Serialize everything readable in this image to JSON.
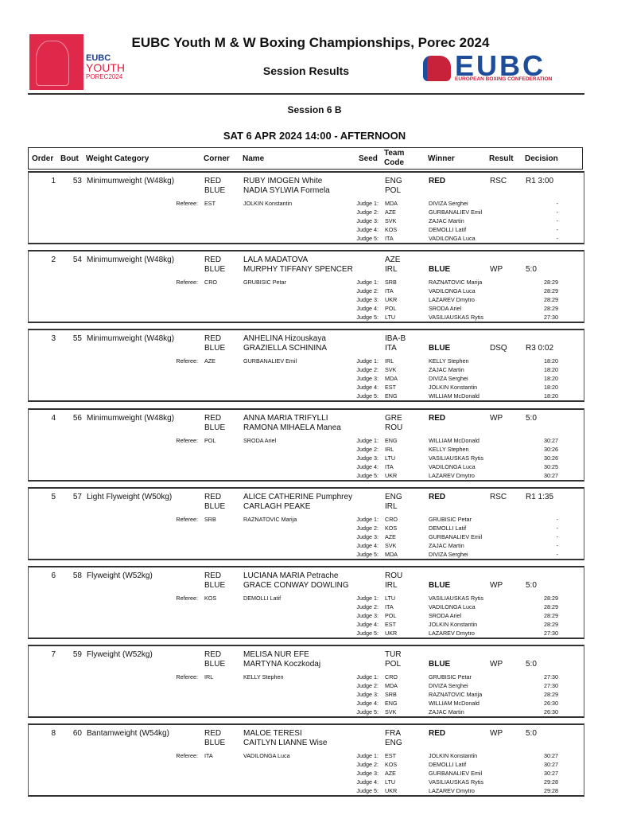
{
  "header": {
    "title": "EUBC Youth M & W Boxing Championships, Porec 2024",
    "subtitle": "Session Results",
    "left_logo": {
      "line1": "EUBC",
      "line2": "YOUTH",
      "line3": "POREC2024"
    },
    "right_logo": {
      "word": "EUBC",
      "tagline": "EUROPEAN BOXING CONFEDERATION"
    },
    "session": "Session 6 B",
    "datetime": "SAT 6 APR 2024  14:00 - AFTERNOON"
  },
  "columns": {
    "order": "Order",
    "bout": "Bout",
    "weight": "Weight Category",
    "corner": "Corner",
    "name": "Name",
    "seed": "Seed",
    "team_code": "Team Code",
    "winner": "Winner",
    "result": "Result",
    "decision": "Decision"
  },
  "labels": {
    "red": "RED",
    "blue": "BLUE",
    "referee": "Referee:",
    "judge_prefix": "Judge"
  },
  "bouts": [
    {
      "order": "1",
      "bout": "53",
      "weight": "Minimumweight (W48kg)",
      "red_name": "RUBY IMOGEN White",
      "red_team": "ENG",
      "blue_name": "NADIA SYLWIA Formela",
      "blue_team": "POL",
      "winner": "RED",
      "result": "RSC",
      "decision": "R1 3:00",
      "referee": {
        "country": "EST",
        "name": "JOLKIN Konstantin"
      },
      "judges": [
        {
          "label": "Judge 1:",
          "country": "MDA",
          "name": "DIVIZA Serghei",
          "score": "-"
        },
        {
          "label": "Judge 2:",
          "country": "AZE",
          "name": "GURBANALIEV Emil",
          "score": "-"
        },
        {
          "label": "Judge 3:",
          "country": "SVK",
          "name": "ZAJAC Martin",
          "score": "-"
        },
        {
          "label": "Judge 4:",
          "country": "KOS",
          "name": "DEMOLLI Latif",
          "score": "-"
        },
        {
          "label": "Judge 5:",
          "country": "ITA",
          "name": "VADILONGA Luca",
          "score": "-"
        }
      ]
    },
    {
      "order": "2",
      "bout": "54",
      "weight": "Minimumweight (W48kg)",
      "red_name": "LALA MADATOVA",
      "red_team": "AZE",
      "blue_name": "MURPHY TIFFANY SPENCER",
      "blue_team": "IRL",
      "winner": "BLUE",
      "result": "WP",
      "decision": "5:0",
      "referee": {
        "country": "CRO",
        "name": "GRUBISIC Petar"
      },
      "judges": [
        {
          "label": "Judge 1:",
          "country": "SRB",
          "name": "RAZNATOVIC Marija",
          "score": "28:29"
        },
        {
          "label": "Judge 2:",
          "country": "ITA",
          "name": "VADILONGA Luca",
          "score": "28:29"
        },
        {
          "label": "Judge 3:",
          "country": "UKR",
          "name": "LAZAREV Dmytro",
          "score": "28:29"
        },
        {
          "label": "Judge 4:",
          "country": "POL",
          "name": "SRODA Ariel",
          "score": "28:29"
        },
        {
          "label": "Judge 5:",
          "country": "LTU",
          "name": "VASILIAUSKAS Rytis",
          "score": "27:30"
        }
      ]
    },
    {
      "order": "3",
      "bout": "55",
      "weight": "Minimumweight (W48kg)",
      "red_name": "ANHELINA Hizouskaya",
      "red_team": "IBA-B",
      "blue_name": "GRAZIELLA SCHININA",
      "blue_team": "ITA",
      "winner": "BLUE",
      "result": "DSQ",
      "decision": "R3 0:02",
      "referee": {
        "country": "AZE",
        "name": "GURBANALIEV Emil"
      },
      "judges": [
        {
          "label": "Judge 1:",
          "country": "IRL",
          "name": "KELLY Stephen",
          "score": "18:20"
        },
        {
          "label": "Judge 2:",
          "country": "SVK",
          "name": "ZAJAC Martin",
          "score": "18:20"
        },
        {
          "label": "Judge 3:",
          "country": "MDA",
          "name": "DIVIZA Serghei",
          "score": "18:20"
        },
        {
          "label": "Judge 4:",
          "country": "EST",
          "name": "JOLKIN Konstantin",
          "score": "18:20"
        },
        {
          "label": "Judge 5:",
          "country": "ENG",
          "name": "WILLIAM McDonald",
          "score": "18:20"
        }
      ]
    },
    {
      "order": "4",
      "bout": "56",
      "weight": "Minimumweight (W48kg)",
      "red_name": "ANNA MARIA TRIFYLLI",
      "red_team": "GRE",
      "blue_name": "RAMONA MIHAELA Manea",
      "blue_team": "ROU",
      "winner": "RED",
      "result": "WP",
      "decision": "5:0",
      "referee": {
        "country": "POL",
        "name": "SRODA Ariel"
      },
      "judges": [
        {
          "label": "Judge 1:",
          "country": "ENG",
          "name": "WILLIAM McDonald",
          "score": "30:27"
        },
        {
          "label": "Judge 2:",
          "country": "IRL",
          "name": "KELLY Stephen",
          "score": "30:26"
        },
        {
          "label": "Judge 3:",
          "country": "LTU",
          "name": "VASILIAUSKAS Rytis",
          "score": "30:26"
        },
        {
          "label": "Judge 4:",
          "country": "ITA",
          "name": "VADILONGA Luca",
          "score": "30:25"
        },
        {
          "label": "Judge 5:",
          "country": "UKR",
          "name": "LAZAREV Dmytro",
          "score": "30:27"
        }
      ]
    },
    {
      "order": "5",
      "bout": "57",
      "weight": "Light Flyweight (W50kg)",
      "red_name": "ALICE CATHERINE Pumphrey",
      "red_team": "ENG",
      "blue_name": "CARLAGH PEAKE",
      "blue_team": "IRL",
      "winner": "RED",
      "result": "RSC",
      "decision": "R1 1:35",
      "referee": {
        "country": "SRB",
        "name": "RAZNATOVIC Marija"
      },
      "judges": [
        {
          "label": "Judge 1:",
          "country": "CRO",
          "name": "GRUBISIC Petar",
          "score": "-"
        },
        {
          "label": "Judge 2:",
          "country": "KOS",
          "name": "DEMOLLI Latif",
          "score": "-"
        },
        {
          "label": "Judge 3:",
          "country": "AZE",
          "name": "GURBANALIEV Emil",
          "score": "-"
        },
        {
          "label": "Judge 4:",
          "country": "SVK",
          "name": "ZAJAC Martin",
          "score": "-"
        },
        {
          "label": "Judge 5:",
          "country": "MDA",
          "name": "DIVIZA Serghei",
          "score": "-"
        }
      ]
    },
    {
      "order": "6",
      "bout": "58",
      "weight": "Flyweight (W52kg)",
      "red_name": "LUCIANA MARIA Petrache",
      "red_team": "ROU",
      "blue_name": "GRACE CONWAY  DOWLING",
      "blue_team": "IRL",
      "winner": "BLUE",
      "result": "WP",
      "decision": "5:0",
      "referee": {
        "country": "KOS",
        "name": "DEMOLLI Latif"
      },
      "judges": [
        {
          "label": "Judge 1:",
          "country": "LTU",
          "name": "VASILIAUSKAS Rytis",
          "score": "28:29"
        },
        {
          "label": "Judge 2:",
          "country": "ITA",
          "name": "VADILONGA Luca",
          "score": "28:29"
        },
        {
          "label": "Judge 3:",
          "country": "POL",
          "name": "SRODA Ariel",
          "score": "28:29"
        },
        {
          "label": "Judge 4:",
          "country": "EST",
          "name": "JOLKIN Konstantin",
          "score": "28:29"
        },
        {
          "label": "Judge 5:",
          "country": "UKR",
          "name": "LAZAREV Dmytro",
          "score": "27:30"
        }
      ]
    },
    {
      "order": "7",
      "bout": "59",
      "weight": "Flyweight (W52kg)",
      "red_name": "MELISA NUR EFE",
      "red_team": "TUR",
      "blue_name": "MARTYNA Koczkodaj",
      "blue_team": "POL",
      "winner": "BLUE",
      "result": "WP",
      "decision": "5:0",
      "referee": {
        "country": "IRL",
        "name": "KELLY Stephen"
      },
      "judges": [
        {
          "label": "Judge 1:",
          "country": "CRO",
          "name": "GRUBISIC Petar",
          "score": "27:30"
        },
        {
          "label": "Judge 2:",
          "country": "MDA",
          "name": "DIVIZA Serghei",
          "score": "27:30"
        },
        {
          "label": "Judge 3:",
          "country": "SRB",
          "name": "RAZNATOVIC Marija",
          "score": "28:29"
        },
        {
          "label": "Judge 4:",
          "country": "ENG",
          "name": "WILLIAM McDonald",
          "score": "26:30"
        },
        {
          "label": "Judge 5:",
          "country": "SVK",
          "name": "ZAJAC Martin",
          "score": "26:30"
        }
      ]
    },
    {
      "order": "8",
      "bout": "60",
      "weight": "Bantamweight (W54kg)",
      "red_name": "MALOE TERESI",
      "red_team": "FRA",
      "blue_name": "CAITLYN LIANNE Wise",
      "blue_team": "ENG",
      "winner": "RED",
      "result": "WP",
      "decision": "5:0",
      "referee": {
        "country": "ITA",
        "name": "VADILONGA Luca"
      },
      "judges": [
        {
          "label": "Judge 1:",
          "country": "EST",
          "name": "JOLKIN Konstantin",
          "score": "30:27"
        },
        {
          "label": "Judge 2:",
          "country": "KOS",
          "name": "DEMOLLI Latif",
          "score": "30:27"
        },
        {
          "label": "Judge 3:",
          "country": "AZE",
          "name": "GURBANALIEV Emil",
          "score": "30:27"
        },
        {
          "label": "Judge 4:",
          "country": "LTU",
          "name": "VASILIAUSKAS Rytis",
          "score": "29:28"
        },
        {
          "label": "Judge 5:",
          "country": "UKR",
          "name": "LAZAREV Dmytro",
          "score": "29:28"
        }
      ]
    }
  ]
}
